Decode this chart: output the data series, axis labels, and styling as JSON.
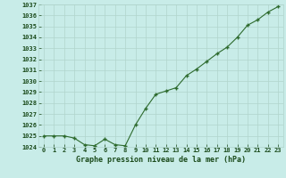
{
  "hours": [
    0,
    1,
    2,
    3,
    4,
    5,
    6,
    7,
    8,
    9,
    10,
    11,
    12,
    13,
    14,
    15,
    16,
    17,
    18,
    19,
    20,
    21,
    22,
    23
  ],
  "pressure": [
    1025.0,
    1025.0,
    1025.0,
    1024.8,
    1024.2,
    1024.1,
    1024.7,
    1024.2,
    1024.1,
    1026.0,
    1027.5,
    1028.8,
    1029.1,
    1029.4,
    1030.5,
    1031.1,
    1031.8,
    1032.5,
    1033.1,
    1034.0,
    1035.1,
    1035.6,
    1036.3,
    1036.8
  ],
  "ylim": [
    1024,
    1037
  ],
  "yticks": [
    1024,
    1025,
    1026,
    1027,
    1028,
    1029,
    1030,
    1031,
    1032,
    1033,
    1034,
    1035,
    1036,
    1037
  ],
  "xlabel": "Graphe pression niveau de la mer (hPa)",
  "line_color": "#2d6a2d",
  "marker_color": "#2d6a2d",
  "bg_color": "#c8ece8",
  "grid_color": "#b0d4cc",
  "plot_bg": "#c8ece8",
  "fig_bg": "#c8ece8",
  "tick_label_color": "#1a4a1a",
  "xlabel_color": "#1a4a1a",
  "tick_fontsize": 5.0,
  "xlabel_fontsize": 6.0
}
